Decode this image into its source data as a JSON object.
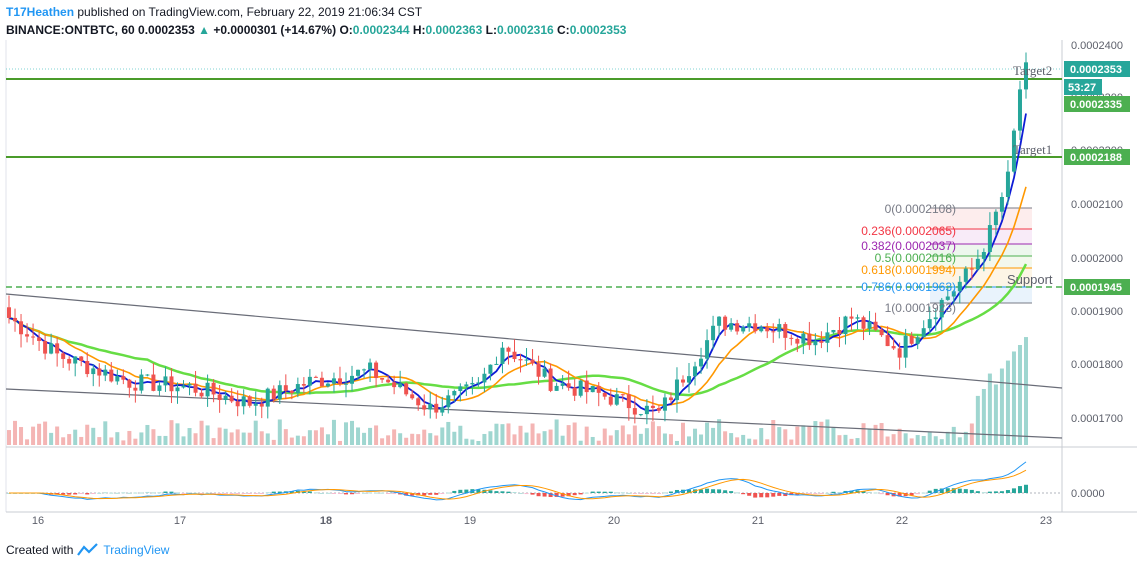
{
  "header": {
    "author": "T17Heathen",
    "published_text": "published on TradingView.com, February 22, 2019 21:06:34 CST",
    "symbol": "BINANCE:ONTBTC, 60",
    "last": "0.0002353",
    "change_arrow": "▲",
    "change": "+0.0000301 (+14.67%)",
    "o_label": "O:",
    "o_value": "0.0002344",
    "h_label": "H:",
    "h_value": "0.0002363",
    "l_label": "L:",
    "l_value": "0.0002316",
    "c_label": "C:",
    "c_value": "0.0002353"
  },
  "price_scale": {
    "ticks": [
      "0.0002400",
      "0.0002300",
      "0.0002200",
      "0.0002100",
      "0.0002000",
      "0.0001900",
      "0.0001800",
      "0.0001700"
    ],
    "badges": [
      {
        "text": "0.0002353",
        "color": "#26a69a"
      },
      {
        "text": "53:27",
        "color": "#26a69a"
      },
      {
        "text": "0.0002335",
        "color": "#4caf50"
      },
      {
        "text": "0.0002188",
        "color": "#4caf50"
      },
      {
        "text": "0.0001945",
        "color": "#4caf50"
      }
    ]
  },
  "time_axis": [
    "16",
    "17",
    "18",
    "19",
    "20",
    "21",
    "22",
    "23"
  ],
  "oscillator": {
    "zero_label": "0.0000"
  },
  "annotations": {
    "target2": "Target2",
    "target1": "Target1",
    "support": "Support"
  },
  "fib_levels": [
    {
      "label": "0(0.0002108)",
      "color": "#787b86"
    },
    {
      "label": "0.236(0.0002065)",
      "color": "#f23645"
    },
    {
      "label": "0.382(0.0002037)",
      "color": "#9c27b0"
    },
    {
      "label": "0.5(0.0002016)",
      "color": "#4caf50"
    },
    {
      "label": "0.618(0.0001994)",
      "color": "#ff9800"
    },
    {
      "label": "0.786(0.0001963)",
      "color": "#2196f3"
    },
    {
      "label": "1(0.0001923)",
      "color": "#787b86"
    }
  ],
  "footer": {
    "created_with": "Created with",
    "brand": "TradingView"
  },
  "colors": {
    "up": "#26a69a",
    "down": "#ef5350",
    "ma_blue": "#0d1bd6",
    "ma_orange": "#ff9800",
    "ma_green": "#66dd44",
    "level_line": "#4a9b2a"
  }
}
